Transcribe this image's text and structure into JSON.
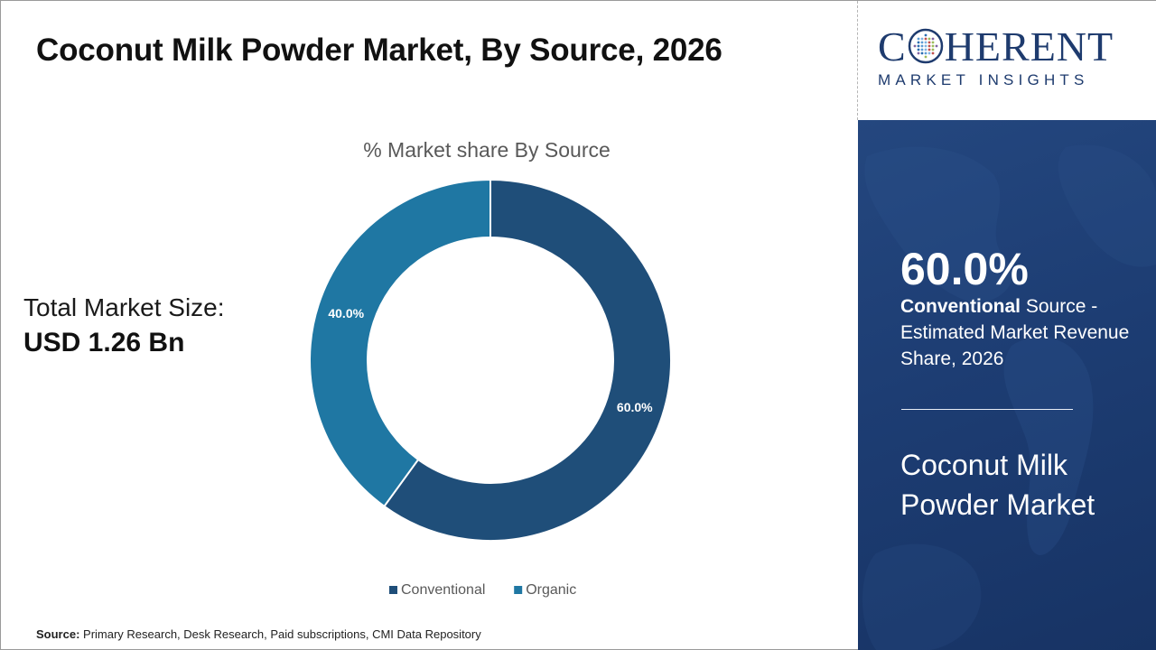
{
  "title": "Coconut Milk Powder Market, By Source, 2026",
  "total_market": {
    "label": "Total Market Size:",
    "value": "USD 1.26 Bn"
  },
  "source_note": {
    "label": "Source:",
    "text": "Primary Research, Desk Research, Paid subscriptions, CMI Data Repository"
  },
  "logo": {
    "main_before": "C",
    "main_after": "HERENT",
    "sub": "MARKET INSIGHTS"
  },
  "highlight": {
    "stat": "60.0%",
    "bold_segment": "Conventional",
    "line_rest": " Source -",
    "desc_tail": "Estimated Market Revenue Share, 2026",
    "market_name": "Coconut Milk Powder Market"
  },
  "colors": {
    "conventional": "#1f4e79",
    "organic": "#1f77a3",
    "panel": "#1d3d73"
  },
  "chart_data": {
    "type": "pie",
    "donut": true,
    "title": "% Market share By Source",
    "categories": [
      "Conventional",
      "Organic"
    ],
    "values": [
      60.0,
      40.0
    ],
    "labels": [
      "60.0%",
      "40.0%"
    ],
    "legend_position": "bottom"
  }
}
